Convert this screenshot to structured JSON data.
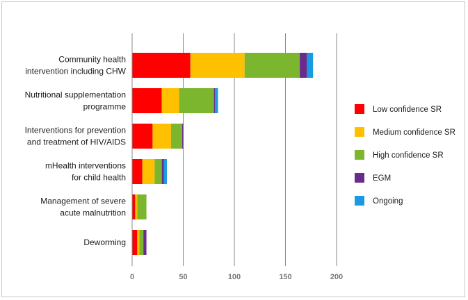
{
  "chart_data": {
    "type": "bar",
    "orientation": "horizontal",
    "stacked": true,
    "categories": [
      [
        "Community health",
        "intervention  including CHW"
      ],
      [
        "Nutritional supplementation",
        "programme"
      ],
      [
        "Interventions for prevention",
        "and treatment of HIV/AIDS"
      ],
      [
        "mHealth interventions",
        "for child health"
      ],
      [
        "Management of severe",
        "acute malnutrition"
      ],
      [
        "Deworming"
      ]
    ],
    "series": [
      {
        "name": "Low confidence SR",
        "color": "#ff0000",
        "values": [
          57,
          29,
          20,
          10,
          3,
          5
        ]
      },
      {
        "name": "Medium confidence SR",
        "color": "#ffc000",
        "values": [
          53,
          17,
          18,
          12,
          2,
          2
        ]
      },
      {
        "name": "High confidence SR",
        "color": "#7cb62f",
        "values": [
          54,
          34,
          11,
          7,
          9,
          4
        ]
      },
      {
        "name": "EGM",
        "color": "#6a2c8c",
        "values": [
          7,
          1,
          1,
          2,
          0,
          3
        ]
      },
      {
        "name": "Ongoing",
        "color": "#1a9ae0",
        "values": [
          6,
          3,
          0,
          3,
          0,
          0
        ]
      }
    ],
    "xlim": [
      0,
      200
    ],
    "xticks": [
      0,
      50,
      100,
      150,
      200
    ],
    "grid": true,
    "legend_position": "right",
    "title": "",
    "xlabel": "",
    "ylabel": ""
  }
}
